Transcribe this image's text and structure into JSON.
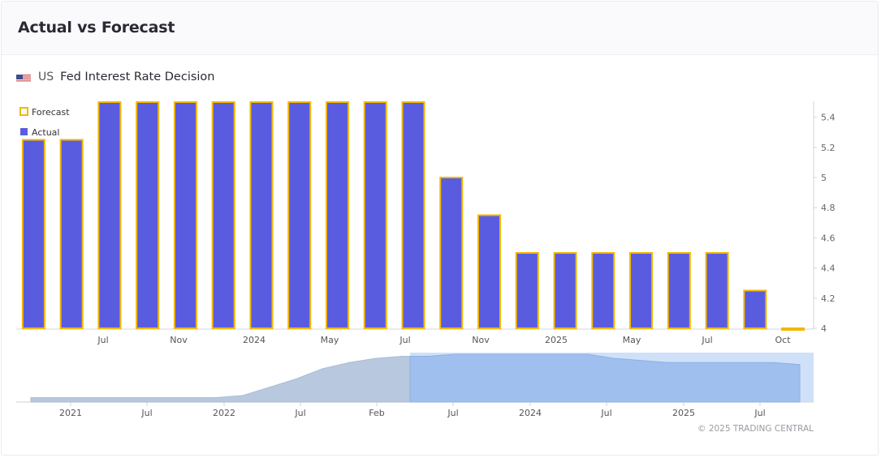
{
  "card": {
    "title": "Actual vs Forecast"
  },
  "event": {
    "country": "US",
    "name": "Fed Interest Rate Decision",
    "flag_icon": "us-flag-icon"
  },
  "legend": {
    "forecast": "Forecast",
    "actual": "Actual"
  },
  "copyright": "© 2025 TRADING CENTRAL",
  "colors": {
    "actual": "#5a5ce0",
    "forecast": "#f2b705",
    "navigator_fill": "#b8c8de",
    "navigator_selected": "#9fbfee",
    "navigator_handle": "#c7dcf8"
  },
  "chart_data": {
    "type": "bar",
    "title": "",
    "series": [
      {
        "name": "Actual",
        "values": [
          5.25,
          5.25,
          5.5,
          5.5,
          5.5,
          5.5,
          5.5,
          5.5,
          5.5,
          5.5,
          5.5,
          5.0,
          4.75,
          4.5,
          4.5,
          4.5,
          4.5,
          4.5,
          4.5,
          4.25,
          null
        ]
      },
      {
        "name": "Forecast",
        "values": [
          5.25,
          5.25,
          5.5,
          5.5,
          5.5,
          5.5,
          5.5,
          5.5,
          5.5,
          5.5,
          5.5,
          5.0,
          4.75,
          4.5,
          4.5,
          4.5,
          4.5,
          4.5,
          4.5,
          4.25,
          4.0
        ]
      }
    ],
    "x_tick_labels": [
      "Jul",
      "Nov",
      "2024",
      "May",
      "Jul",
      "Nov",
      "2025",
      "May",
      "Jul",
      "Oct"
    ],
    "y_tick_labels": [
      "4",
      "4.2",
      "4.4",
      "4.6",
      "4.8",
      "5",
      "5.2",
      "5.4"
    ],
    "ylim": [
      4,
      5.5
    ],
    "legend_position": "top-left",
    "navigator": {
      "x_tick_labels": [
        "2021",
        "Jul",
        "2022",
        "Jul",
        "Feb",
        "Jul",
        "2024",
        "Jul",
        "2025",
        "Jul"
      ],
      "values": [
        0.25,
        0.25,
        0.25,
        0.25,
        0.25,
        0.25,
        0.25,
        0.25,
        0.5,
        1.5,
        2.5,
        3.75,
        4.5,
        5.0,
        5.25,
        5.25,
        5.5,
        5.5,
        5.5,
        5.5,
        5.5,
        5.5,
        5.0,
        4.75,
        4.5,
        4.5,
        4.5,
        4.5,
        4.5,
        4.25
      ]
    }
  }
}
